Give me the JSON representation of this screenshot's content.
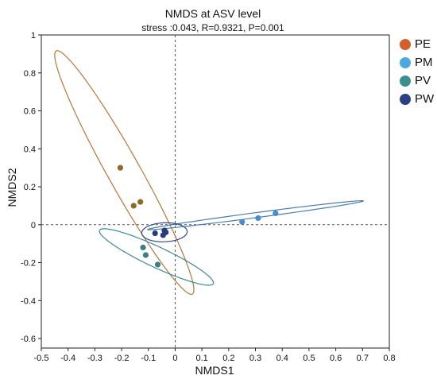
{
  "chart_data": {
    "type": "scatter",
    "title": "NMDS at ASV level",
    "subtitle": "stress :0.043, R=0.9321, P=0.001",
    "xlabel": "NMDS1",
    "ylabel": "NMDS2",
    "xlim": [
      -0.5,
      0.8
    ],
    "ylim": [
      -0.65,
      1.0
    ],
    "xticks": [
      "-0.5",
      "-0.4",
      "-0.3",
      "-0.2",
      "-0.1",
      "0",
      "0.1",
      "0.2",
      "0.3",
      "0.4",
      "0.5",
      "0.6",
      "0.7",
      "0.8"
    ],
    "yticks": [
      "1",
      "0.8",
      "0.6",
      "0.4",
      "0.2",
      "0",
      "-0.2",
      "-0.4",
      "-0.6"
    ],
    "grid": false,
    "reference_lines": [
      0,
      0
    ],
    "legend_placement": "right",
    "series": [
      {
        "name": "PE",
        "color": "#D45F2A",
        "point_color": "#8C6A2A",
        "ellipse_color": "#B5773A",
        "points": [
          [
            -0.205,
            0.3
          ],
          [
            -0.155,
            0.1
          ],
          [
            -0.13,
            0.12
          ]
        ],
        "ellipse": {
          "center": [
            -0.19,
            0.275
          ],
          "semi_major": 0.69,
          "semi_minor": 0.065,
          "angle_deg": -68.5
        }
      },
      {
        "name": "PM",
        "color": "#4CA9DF",
        "point_color": "#4A8CCB",
        "ellipse_color": "#4D7FA8",
        "points": [
          [
            0.25,
            0.015
          ],
          [
            0.31,
            0.035
          ],
          [
            0.375,
            0.06
          ]
        ],
        "ellipse": {
          "center": [
            0.3,
            0.05
          ],
          "semi_major": 0.41,
          "semi_minor": 0.013,
          "angle_deg": 10.6
        }
      },
      {
        "name": "PV",
        "color": "#3A8F8F",
        "point_color": "#3D7F80",
        "ellipse_color": "#3F8890",
        "points": [
          [
            -0.12,
            -0.12
          ],
          [
            -0.11,
            -0.16
          ],
          [
            -0.065,
            -0.21
          ]
        ],
        "ellipse": {
          "center": [
            -0.07,
            -0.17
          ],
          "semi_major": 0.255,
          "semi_minor": 0.05,
          "angle_deg": -34.1
        }
      },
      {
        "name": "PW",
        "color": "#2A3F84",
        "point_color": "#2B3A7C",
        "ellipse_color": "#2F4A8C",
        "points": [
          [
            -0.075,
            -0.045
          ],
          [
            -0.045,
            -0.055
          ],
          [
            -0.035,
            -0.04
          ],
          [
            -0.04,
            -0.03
          ]
        ],
        "ellipse": {
          "center": [
            -0.04,
            -0.04
          ],
          "semi_major": 0.085,
          "semi_minor": 0.05,
          "angle_deg": 4.0
        }
      }
    ]
  }
}
